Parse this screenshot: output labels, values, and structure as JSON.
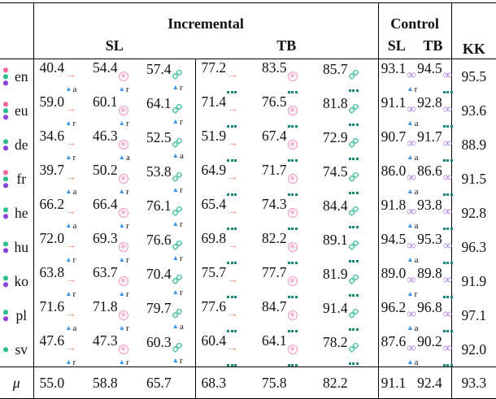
{
  "header": {
    "incremental": "Incremental",
    "control": "Control",
    "kk": "KK",
    "sl": "SL",
    "tb": "TB"
  },
  "colors": {
    "arrow": "#f0897c",
    "flower": "#f293c0",
    "diamonds": "#4cc2a0",
    "infinity": "#a87ce5",
    "triangle": "#3d95e6",
    "dotline": "#17897b",
    "dot_pink": "#f2679e",
    "dot_green": "#2bbd92",
    "dot_purple": "#8b46d9"
  },
  "rows": [
    {
      "lang": "en",
      "dots": [
        "pink",
        "green",
        "purple"
      ],
      "inc_sl": [
        {
          "v": "40.4",
          "sup": "arrow",
          "sub": "tri_a"
        },
        {
          "v": "54.4",
          "sup": "flower",
          "sub": "tri_r"
        },
        {
          "v": "57.4",
          "sup": "diamonds",
          "sub": "tri_r"
        }
      ],
      "inc_tb": [
        {
          "v": "77.2",
          "sup": "arrow",
          "sub": "dots"
        },
        {
          "v": "83.5",
          "sup": "flower",
          "sub": "dots"
        },
        {
          "v": "85.7",
          "sup": "diamonds",
          "sub": "dots"
        }
      ],
      "control": [
        {
          "v": "93.1",
          "sup": "infinity",
          "sub": "tri_r"
        },
        {
          "v": "94.5",
          "sup": "infinity",
          "sub": "dots"
        }
      ],
      "kk": "95.5"
    },
    {
      "lang": "eu",
      "dots": [
        "pink",
        "green",
        "purple"
      ],
      "inc_sl": [
        {
          "v": "59.0",
          "sup": "arrow",
          "sub": "tri_r"
        },
        {
          "v": "60.1",
          "sup": "flower",
          "sub": "tri_r"
        },
        {
          "v": "64.1",
          "sup": "diamonds",
          "sub": "tri_r"
        }
      ],
      "inc_tb": [
        {
          "v": "71.4",
          "sup": "arrow",
          "sub": "dots"
        },
        {
          "v": "76.5",
          "sup": "flower",
          "sub": "dots"
        },
        {
          "v": "81.8",
          "sup": "diamonds",
          "sub": "dots"
        }
      ],
      "control": [
        {
          "v": "91.1",
          "sup": "infinity",
          "sub": "tri_a"
        },
        {
          "v": "92.8",
          "sup": "infinity",
          "sub": "dots"
        }
      ],
      "kk": "93.6"
    },
    {
      "lang": "de",
      "dots": [
        "green",
        "purple"
      ],
      "inc_sl": [
        {
          "v": "34.6",
          "sup": "arrow",
          "sub": "tri_r"
        },
        {
          "v": "46.3",
          "sup": "flower",
          "sub": "tri_a"
        },
        {
          "v": "52.5",
          "sup": "diamonds",
          "sub": "tri_a"
        }
      ],
      "inc_tb": [
        {
          "v": "51.9",
          "sup": "arrow",
          "sub": "dots"
        },
        {
          "v": "67.4",
          "sup": "flower",
          "sub": "dots"
        },
        {
          "v": "72.9",
          "sup": "diamonds",
          "sub": "dots"
        }
      ],
      "control": [
        {
          "v": "90.7",
          "sup": "infinity",
          "sub": "tri_a"
        },
        {
          "v": "91.7",
          "sup": "infinity",
          "sub": "dots"
        }
      ],
      "kk": "88.9"
    },
    {
      "lang": "fr",
      "dots": [
        "pink",
        "green",
        "purple"
      ],
      "inc_sl": [
        {
          "v": "39.7",
          "sup": "arrow",
          "sub": "tri_a"
        },
        {
          "v": "50.2",
          "sup": "flower",
          "sub": "tri_r"
        },
        {
          "v": "53.8",
          "sup": "diamonds",
          "sub": "tri_r"
        }
      ],
      "inc_tb": [
        {
          "v": "64.9",
          "sup": "arrow",
          "sub": "dots"
        },
        {
          "v": "71.7",
          "sup": "flower",
          "sub": "dots"
        },
        {
          "v": "74.5",
          "sup": "diamonds",
          "sub": "dots"
        }
      ],
      "control": [
        {
          "v": "86.0",
          "sup": "infinity",
          "sub": "tri_a"
        },
        {
          "v": "86.6",
          "sup": "infinity",
          "sub": "dots"
        }
      ],
      "kk": "91.5"
    },
    {
      "lang": "he",
      "dots": [
        "green",
        "purple"
      ],
      "inc_sl": [
        {
          "v": "66.2",
          "sup": "arrow",
          "sub": "tri_a"
        },
        {
          "v": "66.4",
          "sup": "flower",
          "sub": "tri_r"
        },
        {
          "v": "76.1",
          "sup": "diamonds",
          "sub": "tri_r"
        }
      ],
      "inc_tb": [
        {
          "v": "65.4",
          "sup": "arrow",
          "sub": "dots"
        },
        {
          "v": "74.3",
          "sup": "flower",
          "sub": "dots"
        },
        {
          "v": "84.4",
          "sup": "diamonds",
          "sub": "dots"
        }
      ],
      "control": [
        {
          "v": "91.8",
          "sup": "infinity",
          "sub": "tri_a"
        },
        {
          "v": "93.8",
          "sup": "infinity",
          "sub": "dots"
        }
      ],
      "kk": "92.8"
    },
    {
      "lang": "hu",
      "dots": [
        "green",
        "purple"
      ],
      "inc_sl": [
        {
          "v": "72.0",
          "sup": "arrow",
          "sub": "tri_r"
        },
        {
          "v": "69.3",
          "sup": "flower",
          "sub": "tri_r"
        },
        {
          "v": "76.6",
          "sup": "diamonds",
          "sub": "tri_r"
        }
      ],
      "inc_tb": [
        {
          "v": "69.8",
          "sup": "arrow",
          "sub": "dots"
        },
        {
          "v": "82.2",
          "sup": "flower",
          "sub": "dots"
        },
        {
          "v": "89.1",
          "sup": "diamonds",
          "sub": "dots"
        }
      ],
      "control": [
        {
          "v": "94.5",
          "sup": "infinity",
          "sub": "tri_a"
        },
        {
          "v": "95.3",
          "sup": "infinity",
          "sub": "dots"
        }
      ],
      "kk": "96.3"
    },
    {
      "lang": "ko",
      "dots": [
        "green",
        "purple"
      ],
      "inc_sl": [
        {
          "v": "63.8",
          "sup": "arrow",
          "sub": "tri_r"
        },
        {
          "v": "63.7",
          "sup": "flower",
          "sub": "tri_r"
        },
        {
          "v": "70.4",
          "sup": "diamonds",
          "sub": "tri_r"
        }
      ],
      "inc_tb": [
        {
          "v": "75.7",
          "sup": "arrow",
          "sub": "dots"
        },
        {
          "v": "77.7",
          "sup": "flower",
          "sub": "dots"
        },
        {
          "v": "81.9",
          "sup": "diamonds",
          "sub": "dots"
        }
      ],
      "control": [
        {
          "v": "89.0",
          "sup": "infinity",
          "sub": "tri_r"
        },
        {
          "v": "89.8",
          "sup": "infinity",
          "sub": "dots"
        }
      ],
      "kk": "91.9"
    },
    {
      "lang": "pl",
      "dots": [
        "green",
        "purple"
      ],
      "inc_sl": [
        {
          "v": "71.6",
          "sup": "arrow",
          "sub": "tri_a"
        },
        {
          "v": "71.8",
          "sup": "flower",
          "sub": "tri_r"
        },
        {
          "v": "79.7",
          "sup": "diamonds",
          "sub": "tri_a"
        }
      ],
      "inc_tb": [
        {
          "v": "77.6",
          "sup": "arrow",
          "sub": "dots"
        },
        {
          "v": "84.7",
          "sup": "flower",
          "sub": "dots"
        },
        {
          "v": "91.4",
          "sup": "diamonds",
          "sub": "dots"
        }
      ],
      "control": [
        {
          "v": "96.2",
          "sup": "infinity",
          "sub": "tri_a"
        },
        {
          "v": "96.8",
          "sup": "infinity",
          "sub": "dots"
        }
      ],
      "kk": "97.1"
    },
    {
      "lang": "sv",
      "dots": [
        "green"
      ],
      "inc_sl": [
        {
          "v": "47.6",
          "sup": "arrow",
          "sub": "tri_r"
        },
        {
          "v": "47.3",
          "sup": "flower",
          "sub": "tri_r"
        },
        {
          "v": "60.3",
          "sup": "diamonds",
          "sub": "tri_r"
        }
      ],
      "inc_tb": [
        {
          "v": "60.4",
          "sup": "arrow",
          "sub": "dots"
        },
        {
          "v": "64.1",
          "sup": "flower",
          "sub": "dots"
        },
        {
          "v": "78.2",
          "sup": "diamonds",
          "sub": "dots"
        }
      ],
      "control": [
        {
          "v": "87.6",
          "sup": "infinity",
          "sub": "tri_a"
        },
        {
          "v": "90.2",
          "sup": "infinity",
          "sub": "dots"
        }
      ],
      "kk": "92.0"
    }
  ],
  "mean_row": {
    "label": "μ",
    "inc_sl": [
      "55.0",
      "58.8",
      "65.7"
    ],
    "inc_tb": [
      "68.3",
      "75.8",
      "82.2"
    ],
    "control": [
      "91.1",
      "92.4"
    ],
    "kk": "93.3"
  }
}
